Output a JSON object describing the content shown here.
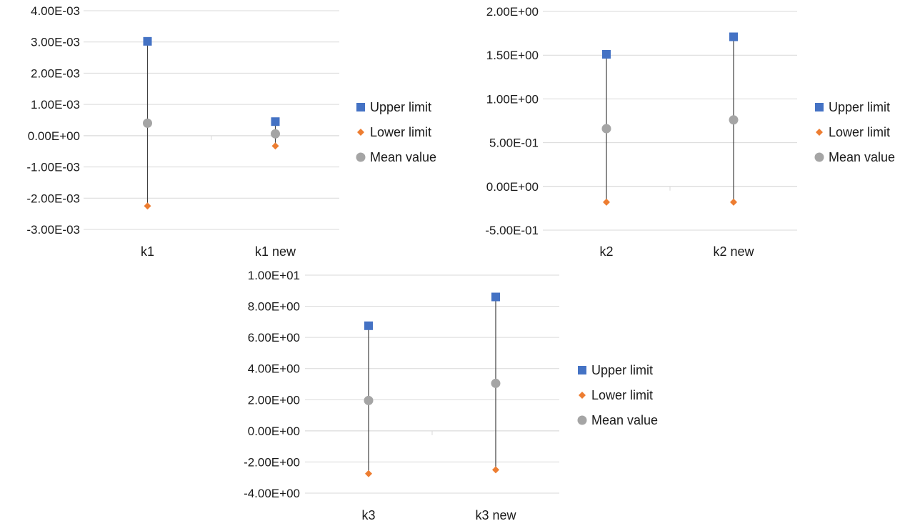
{
  "chart_data": [
    {
      "type": "scatter",
      "categories": [
        "k1",
        "k1 new"
      ],
      "yticks": [
        "4.00E-03",
        "3.00E-03",
        "2.00E-03",
        "1.00E-03",
        "0.00E+00",
        "-1.00E-03",
        "-2.00E-03",
        "-3.00E-03"
      ],
      "ylim": [
        -0.003,
        0.004
      ],
      "series": [
        {
          "name": "Upper limit",
          "color": "#4472c4",
          "marker": "square",
          "values": [
            0.00302,
            0.00045
          ]
        },
        {
          "name": "Lower limit",
          "color": "#ed7d31",
          "marker": "diamond",
          "values": [
            -0.00225,
            -0.00033
          ]
        },
        {
          "name": "Mean value",
          "color": "#a5a5a5",
          "marker": "circle",
          "values": [
            0.0004,
            6e-05
          ]
        }
      ],
      "grid": true,
      "legend": "right"
    },
    {
      "type": "scatter",
      "categories": [
        "k2",
        "k2 new"
      ],
      "yticks": [
        "2.00E+00",
        "1.50E+00",
        "1.00E+00",
        "5.00E-01",
        "0.00E+00",
        "-5.00E-01"
      ],
      "ylim": [
        -0.5,
        2.0
      ],
      "series": [
        {
          "name": "Upper limit",
          "color": "#4472c4",
          "marker": "square",
          "values": [
            1.51,
            1.71
          ]
        },
        {
          "name": "Lower limit",
          "color": "#ed7d31",
          "marker": "diamond",
          "values": [
            -0.18,
            -0.18
          ]
        },
        {
          "name": "Mean value",
          "color": "#a5a5a5",
          "marker": "circle",
          "values": [
            0.66,
            0.76
          ]
        }
      ],
      "grid": true,
      "legend": "right"
    },
    {
      "type": "scatter",
      "categories": [
        "k3",
        "k3 new"
      ],
      "yticks": [
        "1.00E+01",
        "8.00E+00",
        "6.00E+00",
        "4.00E+00",
        "2.00E+00",
        "0.00E+00",
        "-2.00E+00",
        "-4.00E+00"
      ],
      "ylim": [
        -4,
        10
      ],
      "series": [
        {
          "name": "Upper limit",
          "color": "#4472c4",
          "marker": "square",
          "values": [
            6.75,
            8.6
          ]
        },
        {
          "name": "Lower limit",
          "color": "#ed7d31",
          "marker": "diamond",
          "values": [
            -2.75,
            -2.5
          ]
        },
        {
          "name": "Mean value",
          "color": "#a5a5a5",
          "marker": "circle",
          "values": [
            1.95,
            3.05
          ]
        }
      ],
      "grid": true,
      "legend": "right"
    }
  ]
}
